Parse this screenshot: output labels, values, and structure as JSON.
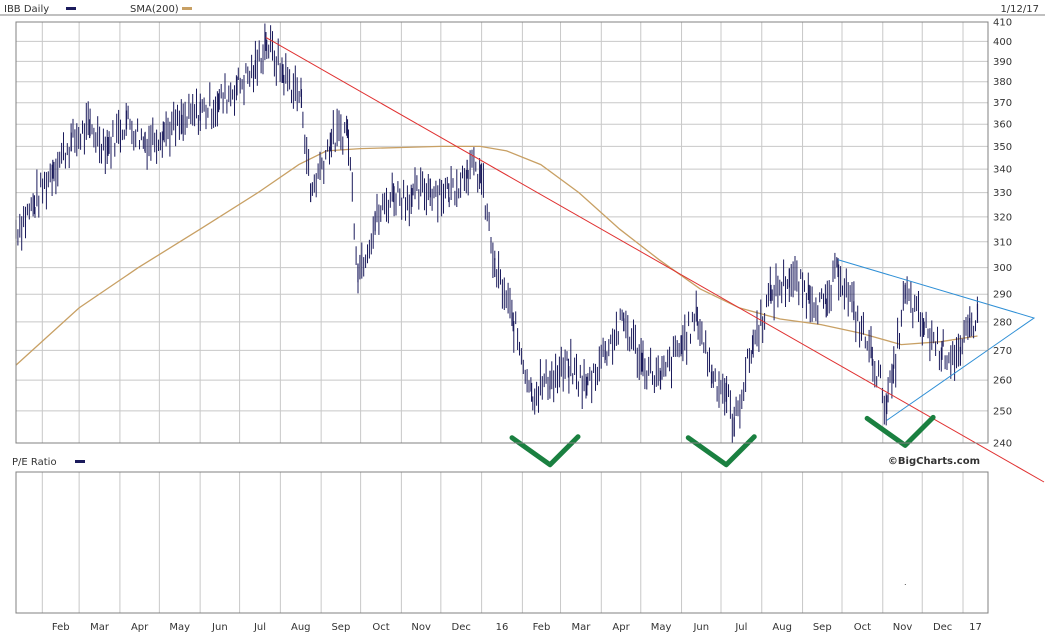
{
  "header": {
    "symbol_label": "IBB Daily",
    "sma_label": "SMA(200)",
    "date_label": "1/12/17",
    "ratio_label": "P/E Ratio",
    "watermark": "©BigCharts.com"
  },
  "colors": {
    "price": "#1b1b5c",
    "sma": "#c8a064",
    "downtrend": "#e03030",
    "triangle": "#2e8fd6",
    "check": "#1a8040",
    "grid": "#c8c8c8",
    "frame": "#808080"
  },
  "chart_data": [
    {
      "type": "line",
      "style": "ohlc-bars",
      "title": "IBB Daily",
      "series": [
        {
          "name": "IBB Daily",
          "points": [
            [
              "2015-01-12",
              315
            ],
            [
              "2015-01-26",
              325
            ],
            [
              "2015-02-09",
              340
            ],
            [
              "2015-02-23",
              352
            ],
            [
              "2015-03-09",
              358
            ],
            [
              "2015-03-23",
              350
            ],
            [
              "2015-04-06",
              362
            ],
            [
              "2015-04-20",
              352
            ],
            [
              "2015-05-04",
              357
            ],
            [
              "2015-05-18",
              360
            ],
            [
              "2015-06-01",
              366
            ],
            [
              "2015-06-15",
              370
            ],
            [
              "2015-06-29",
              378
            ],
            [
              "2015-07-13",
              386
            ],
            [
              "2015-07-21",
              400
            ],
            [
              "2015-08-03",
              384
            ],
            [
              "2015-08-17",
              372
            ],
            [
              "2015-08-24",
              330
            ],
            [
              "2015-09-08",
              352
            ],
            [
              "2015-09-21",
              358
            ],
            [
              "2015-09-29",
              298
            ],
            [
              "2015-10-12",
              318
            ],
            [
              "2015-10-26",
              330
            ],
            [
              "2015-11-09",
              328
            ],
            [
              "2015-11-23",
              332
            ],
            [
              "2015-12-07",
              330
            ],
            [
              "2015-12-21",
              340
            ],
            [
              "2015-12-31",
              338
            ],
            [
              "2016-01-11",
              300
            ],
            [
              "2016-01-25",
              280
            ],
            [
              "2016-02-08",
              256
            ],
            [
              "2016-02-22",
              260
            ],
            [
              "2016-03-07",
              264
            ],
            [
              "2016-03-21",
              258
            ],
            [
              "2016-04-04",
              270
            ],
            [
              "2016-04-18",
              280
            ],
            [
              "2016-05-02",
              266
            ],
            [
              "2016-05-16",
              260
            ],
            [
              "2016-06-01",
              272
            ],
            [
              "2016-06-13",
              282
            ],
            [
              "2016-06-24",
              262
            ],
            [
              "2016-07-05",
              256
            ],
            [
              "2016-07-11",
              245
            ],
            [
              "2016-07-25",
              272
            ],
            [
              "2016-08-08",
              290
            ],
            [
              "2016-08-22",
              296
            ],
            [
              "2016-09-06",
              290
            ],
            [
              "2016-09-19",
              285
            ],
            [
              "2016-09-28",
              300
            ],
            [
              "2016-10-10",
              284
            ],
            [
              "2016-10-24",
              268
            ],
            [
              "2016-11-04",
              252
            ],
            [
              "2016-11-09",
              262
            ],
            [
              "2016-11-18",
              290
            ],
            [
              "2016-12-02",
              278
            ],
            [
              "2016-12-16",
              270
            ],
            [
              "2016-12-30",
              268
            ],
            [
              "2017-01-06",
              278
            ],
            [
              "2017-01-12",
              283
            ]
          ]
        },
        {
          "name": "SMA(200)",
          "points": [
            [
              "2015-01-12",
              265
            ],
            [
              "2015-03-01",
              285
            ],
            [
              "2015-04-15",
              300
            ],
            [
              "2015-06-01",
              315
            ],
            [
              "2015-07-15",
              330
            ],
            [
              "2015-08-15",
              342
            ],
            [
              "2015-09-05",
              348
            ],
            [
              "2015-10-01",
              349
            ],
            [
              "2015-11-01",
              349.5
            ],
            [
              "2015-12-01",
              350
            ],
            [
              "2015-12-31",
              350
            ],
            [
              "2016-01-20",
              348
            ],
            [
              "2016-02-15",
              342
            ],
            [
              "2016-03-15",
              330
            ],
            [
              "2016-04-15",
              315
            ],
            [
              "2016-05-15",
              303
            ],
            [
              "2016-06-15",
              292
            ],
            [
              "2016-07-15",
              285
            ],
            [
              "2016-08-15",
              281
            ],
            [
              "2016-09-15",
              279
            ],
            [
              "2016-10-15",
              276
            ],
            [
              "2016-11-15",
              272
            ],
            [
              "2016-12-15",
              273
            ],
            [
              "2017-01-12",
              275
            ]
          ]
        }
      ],
      "annotations": [
        {
          "kind": "trendline",
          "points": [
            [
              "2015-07-21",
              402
            ],
            [
              "2017-02-10",
              235
            ]
          ]
        },
        {
          "kind": "triangle",
          "points": [
            [
              "2016-09-28",
              303
            ],
            [
              "2017-01-24",
              282
            ],
            [
              "2016-11-04",
              247
            ]
          ]
        },
        {
          "kind": "check",
          "center": [
            "2016-02-22",
            241
          ]
        },
        {
          "kind": "check",
          "center": [
            "2016-07-05",
            241
          ]
        },
        {
          "kind": "check",
          "center": [
            "2016-11-18",
            247
          ]
        }
      ],
      "x_tick_labels": [
        "Feb",
        "Mar",
        "Apr",
        "May",
        "Jun",
        "Jul",
        "Aug",
        "Sep",
        "Oct",
        "Nov",
        "Dec",
        "16",
        "Feb",
        "Mar",
        "Apr",
        "May",
        "Jun",
        "Jul",
        "Aug",
        "Sep",
        "Oct",
        "Nov",
        "Dec",
        "17"
      ],
      "y_ticks": [
        240,
        250,
        260,
        270,
        280,
        290,
        300,
        310,
        320,
        330,
        340,
        350,
        360,
        370,
        380,
        390,
        400,
        410
      ],
      "ylim": [
        240,
        410
      ],
      "y_scale": "log",
      "grid": true
    },
    {
      "type": "line",
      "title": "P/E Ratio",
      "series": [],
      "grid": true
    }
  ]
}
